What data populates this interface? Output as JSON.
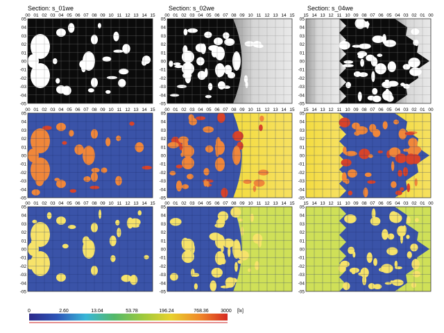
{
  "sections": [
    {
      "title": "Section: s_01we",
      "x_ticks": [
        "00",
        "01",
        "02",
        "03",
        "04",
        "05",
        "06",
        "07",
        "08",
        "09",
        "10",
        "11",
        "12",
        "13",
        "14",
        "15"
      ]
    },
    {
      "title": "Section: s_02we",
      "x_ticks": [
        "00",
        "01",
        "02",
        "03",
        "04",
        "05",
        "06",
        "07",
        "08",
        "09",
        "10",
        "11",
        "12",
        "13",
        "14",
        "15"
      ]
    },
    {
      "title": "Section: s_04we",
      "x_ticks": [
        "15",
        "14",
        "13",
        "12",
        "11",
        "10",
        "09",
        "08",
        "07",
        "06",
        "05",
        "04",
        "03",
        "02",
        "01",
        "00"
      ]
    }
  ],
  "y_ticks": [
    "05",
    "04",
    "03",
    "02",
    "01",
    "00",
    "-01",
    "-02",
    "-03",
    "-04",
    "-05"
  ],
  "rows": [
    "grayscale",
    "illuminance-color",
    "threshold"
  ],
  "colors": {
    "black": "#0b0b0b",
    "white": "#ffffff",
    "light_gray": "#c9c9c9",
    "blue": "#3a53a8",
    "orange": "#f0873a",
    "red": "#d8432a",
    "yellow": "#f5dc48",
    "light_yellow": "#f7e36a",
    "yellow_green": "#cfe058",
    "grid_light": "#8a8a8a",
    "grid_dark": "#1d2f6e"
  },
  "chart_data": {
    "type": "heatmap",
    "panels": 9,
    "layout": "3 rows x 3 columns",
    "x_range": [
      0,
      15
    ],
    "y_range": [
      -5,
      5
    ],
    "colorbar": {
      "ticks": [
        "0",
        "2.60",
        "13.04",
        "53.78",
        "196.24",
        "768.36",
        "3000"
      ],
      "unit": "[lx]",
      "stops": [
        "#2c2a8a",
        "#2e56b8",
        "#38b6d8",
        "#53b86a",
        "#9cc93e",
        "#e8d12e",
        "#f08a2a",
        "#d62a22"
      ]
    }
  }
}
